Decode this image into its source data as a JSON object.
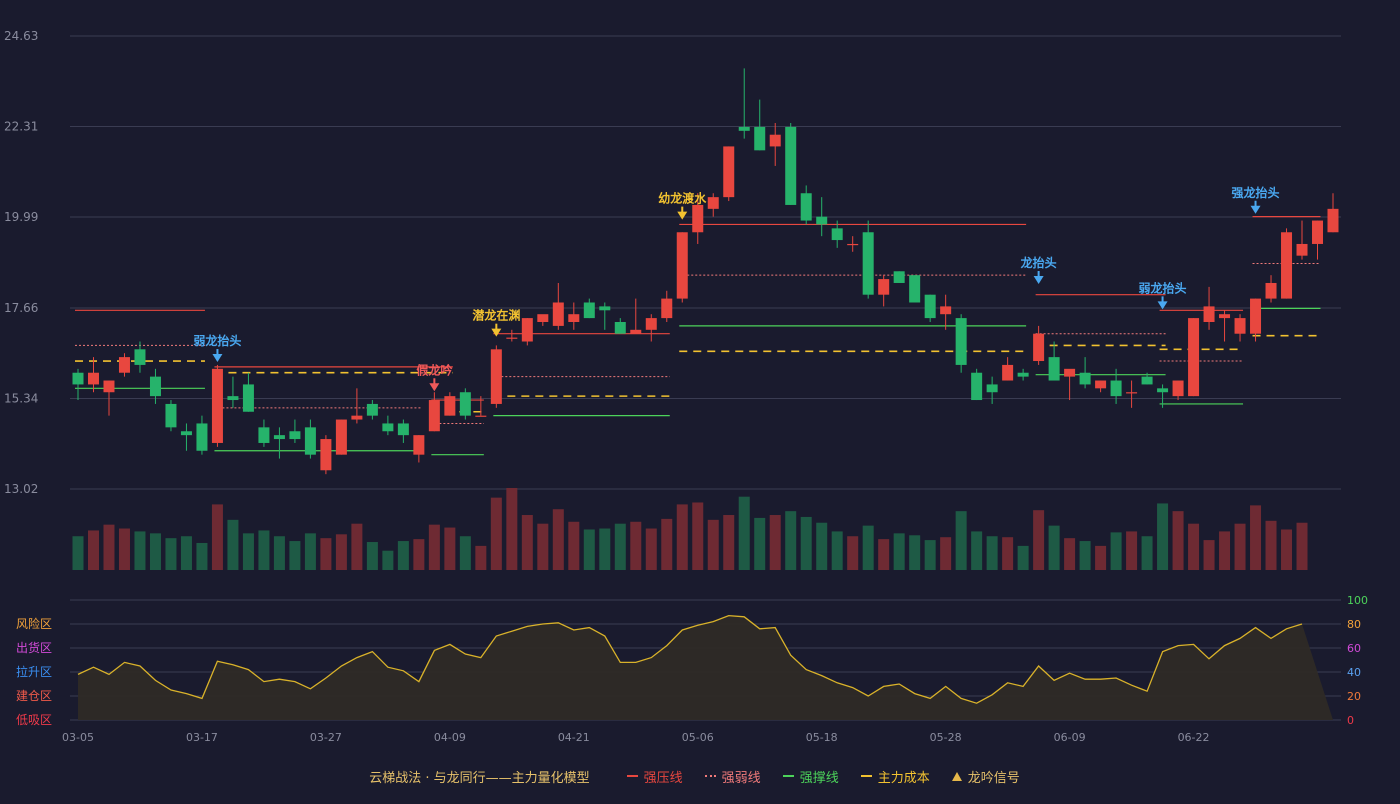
{
  "colors": {
    "background": "#1a1b2e",
    "grid": "#3a3c52",
    "axis_text": "#8a8c9e",
    "up": "#e8473f",
    "down": "#26b36b",
    "vol_up": "#6e2a33",
    "vol_down": "#1e5a45",
    "strong_pressure": "#e8473f",
    "strong_weak": "#f07a7a",
    "strong_support": "#4cd35a",
    "main_cost": "#f2c230",
    "signal_blue": "#4aa8f0",
    "signal_gold": "#f2c230",
    "signal_red": "#f05a5a",
    "osc_line": "#d9b22a",
    "osc_fill": "#2e2a26",
    "zone_risk": "#f2a23a",
    "zone_ship": "#d24ad8",
    "zone_rise": "#3a8ef0",
    "zone_build": "#f05a4a",
    "zone_low": "#f03a4a",
    "scale_100": "#4cd35a",
    "scale_80": "#f2a23a",
    "scale_60": "#d24ad8",
    "scale_40": "#5aa0f0",
    "scale_20": "#f07a3a",
    "scale_0": "#f03a4a"
  },
  "chart_data": {
    "type": "candlestick",
    "price_axis": {
      "ticks": [
        24.63,
        22.31,
        19.99,
        17.66,
        15.34,
        13.02
      ],
      "range": [
        13.02,
        24.63
      ]
    },
    "x_ticks": [
      {
        "i": 0,
        "label": "03-05"
      },
      {
        "i": 8,
        "label": "03-17"
      },
      {
        "i": 16,
        "label": "03-27"
      },
      {
        "i": 24,
        "label": "04-09"
      },
      {
        "i": 32,
        "label": "04-21"
      },
      {
        "i": 40,
        "label": "05-06"
      },
      {
        "i": 48,
        "label": "05-18"
      },
      {
        "i": 56,
        "label": "05-28"
      },
      {
        "i": 64,
        "label": "06-09"
      },
      {
        "i": 72,
        "label": "06-22"
      }
    ],
    "ohlc": [
      [
        16.0,
        16.1,
        15.3,
        15.7
      ],
      [
        15.7,
        16.4,
        15.5,
        16.0
      ],
      [
        15.5,
        15.8,
        14.9,
        15.8
      ],
      [
        16.0,
        16.5,
        15.9,
        16.4
      ],
      [
        16.6,
        16.8,
        16.0,
        16.2
      ],
      [
        15.9,
        16.1,
        15.2,
        15.4
      ],
      [
        15.2,
        15.3,
        14.5,
        14.6
      ],
      [
        14.5,
        14.7,
        14.0,
        14.4
      ],
      [
        14.7,
        14.9,
        13.9,
        14.0
      ],
      [
        14.2,
        16.2,
        14.1,
        16.1
      ],
      [
        15.4,
        15.9,
        15.1,
        15.3
      ],
      [
        15.7,
        16.0,
        15.0,
        15.0
      ],
      [
        14.6,
        14.8,
        14.1,
        14.2
      ],
      [
        14.4,
        14.6,
        13.8,
        14.3
      ],
      [
        14.5,
        14.8,
        14.2,
        14.3
      ],
      [
        14.6,
        14.8,
        13.8,
        13.9
      ],
      [
        13.5,
        14.4,
        13.4,
        14.3
      ],
      [
        13.9,
        14.8,
        13.9,
        14.8
      ],
      [
        14.8,
        15.6,
        14.7,
        14.9
      ],
      [
        15.2,
        15.3,
        14.8,
        14.9
      ],
      [
        14.7,
        14.9,
        14.4,
        14.5
      ],
      [
        14.7,
        14.8,
        14.2,
        14.4
      ],
      [
        13.9,
        14.4,
        13.7,
        14.4
      ],
      [
        14.5,
        15.5,
        14.5,
        15.3
      ],
      [
        14.9,
        15.5,
        14.9,
        15.4
      ],
      [
        15.5,
        15.6,
        14.8,
        14.9
      ],
      [
        14.9,
        15.4,
        14.9,
        14.9
      ],
      [
        15.2,
        16.7,
        15.1,
        16.6
      ],
      [
        16.9,
        17.1,
        16.8,
        16.9
      ],
      [
        16.8,
        17.4,
        16.7,
        17.4
      ],
      [
        17.3,
        17.4,
        17.2,
        17.5
      ],
      [
        17.2,
        18.3,
        17.1,
        17.8
      ],
      [
        17.3,
        17.8,
        17.1,
        17.5
      ],
      [
        17.8,
        17.9,
        17.4,
        17.4
      ],
      [
        17.7,
        17.8,
        17.1,
        17.6
      ],
      [
        17.3,
        17.4,
        17.0,
        17.0
      ],
      [
        17.0,
        17.9,
        17.0,
        17.1
      ],
      [
        17.1,
        17.5,
        16.8,
        17.4
      ],
      [
        17.4,
        18.1,
        17.3,
        17.9
      ],
      [
        17.9,
        19.6,
        17.8,
        19.6
      ],
      [
        19.6,
        20.6,
        19.3,
        20.3
      ],
      [
        20.2,
        20.6,
        20.0,
        20.5
      ],
      [
        20.5,
        21.8,
        20.4,
        21.8
      ],
      [
        22.3,
        23.8,
        22.0,
        22.2
      ],
      [
        22.3,
        23.0,
        21.7,
        21.7
      ],
      [
        21.8,
        22.4,
        21.3,
        22.1
      ],
      [
        22.3,
        22.4,
        20.3,
        20.3
      ],
      [
        20.6,
        20.8,
        19.8,
        19.9
      ],
      [
        20.0,
        20.5,
        19.5,
        19.8
      ],
      [
        19.7,
        19.9,
        19.2,
        19.4
      ],
      [
        19.3,
        19.5,
        19.1,
        19.3
      ],
      [
        19.6,
        19.9,
        17.9,
        18.0
      ],
      [
        18.0,
        18.5,
        17.7,
        18.4
      ],
      [
        18.6,
        18.6,
        18.3,
        18.3
      ],
      [
        18.5,
        18.5,
        17.8,
        17.8
      ],
      [
        18.0,
        18.0,
        17.3,
        17.4
      ],
      [
        17.5,
        18.0,
        17.1,
        17.7
      ],
      [
        17.4,
        17.5,
        16.0,
        16.2
      ],
      [
        16.0,
        16.1,
        15.3,
        15.3
      ],
      [
        15.7,
        15.9,
        15.2,
        15.5
      ],
      [
        15.8,
        16.4,
        15.8,
        16.2
      ],
      [
        16.0,
        16.1,
        15.8,
        15.9
      ],
      [
        16.3,
        17.2,
        16.2,
        17.0
      ],
      [
        16.4,
        16.8,
        15.9,
        15.8
      ],
      [
        15.9,
        16.0,
        15.3,
        16.1
      ],
      [
        16.0,
        16.4,
        15.6,
        15.7
      ],
      [
        15.6,
        15.8,
        15.5,
        15.8
      ],
      [
        15.8,
        16.1,
        15.2,
        15.4
      ],
      [
        15.5,
        15.8,
        15.1,
        15.5
      ],
      [
        15.9,
        16.0,
        15.7,
        15.7
      ],
      [
        15.6,
        15.7,
        15.1,
        15.5
      ],
      [
        15.4,
        15.8,
        15.3,
        15.8
      ],
      [
        15.4,
        17.4,
        15.4,
        17.4
      ],
      [
        17.3,
        18.2,
        17.1,
        17.7
      ],
      [
        17.4,
        17.6,
        16.8,
        17.5
      ],
      [
        17.0,
        17.5,
        16.8,
        17.4
      ],
      [
        17.0,
        17.9,
        16.8,
        17.9
      ],
      [
        17.9,
        18.5,
        17.8,
        18.3
      ],
      [
        17.9,
        19.7,
        17.9,
        19.6
      ],
      [
        19.0,
        19.9,
        18.9,
        19.3
      ],
      [
        19.3,
        19.9,
        18.9,
        19.9
      ],
      [
        19.6,
        20.6,
        19.6,
        20.2
      ]
    ],
    "volume": [
      35,
      41,
      47,
      43,
      40,
      38,
      33,
      35,
      28,
      68,
      52,
      38,
      41,
      35,
      30,
      38,
      33,
      37,
      48,
      29,
      20,
      30,
      32,
      47,
      44,
      35,
      25,
      75,
      85,
      57,
      48,
      63,
      50,
      42,
      43,
      48,
      50,
      43,
      53,
      68,
      70,
      52,
      57,
      76,
      54,
      57,
      61,
      55,
      49,
      40,
      35,
      46,
      32,
      38,
      36,
      31,
      34,
      61,
      40,
      35,
      34,
      25,
      62,
      46,
      33,
      30,
      25,
      39,
      40,
      35,
      69,
      61,
      48,
      31,
      40,
      48,
      67,
      51,
      42,
      49
    ],
    "oscillator": [
      38,
      44,
      38,
      48,
      45,
      33,
      25,
      22,
      18,
      49,
      46,
      42,
      32,
      34,
      32,
      26,
      35,
      45,
      52,
      57,
      44,
      41,
      32,
      58,
      63,
      55,
      52,
      70,
      74,
      78,
      80,
      81,
      75,
      77,
      70,
      48,
      48,
      52,
      62,
      75,
      79,
      82,
      87,
      86,
      76,
      77,
      54,
      42,
      37,
      31,
      27,
      20,
      28,
      30,
      22,
      18,
      28,
      18,
      14,
      21,
      31,
      28,
      45,
      33,
      39,
      34,
      34,
      35,
      29,
      24,
      57,
      62,
      63,
      51,
      62,
      68,
      77,
      68,
      76,
      80
    ],
    "oscillator_scale": [
      {
        "value": 100,
        "label": "100",
        "color_key": "scale_100"
      },
      {
        "value": 80,
        "label": "80",
        "color_key": "scale_80"
      },
      {
        "value": 60,
        "label": "60",
        "color_key": "scale_60"
      },
      {
        "value": 40,
        "label": "40",
        "color_key": "scale_40"
      },
      {
        "value": 20,
        "label": "20",
        "color_key": "scale_20"
      },
      {
        "value": 0,
        "label": "0",
        "color_key": "scale_0"
      }
    ],
    "zones": [
      {
        "value": 80,
        "label": "风险区",
        "color_key": "zone_risk"
      },
      {
        "value": 60,
        "label": "出货区",
        "color_key": "zone_ship"
      },
      {
        "value": 40,
        "label": "拉升区",
        "color_key": "zone_rise"
      },
      {
        "value": 20,
        "label": "建仓区",
        "color_key": "zone_build"
      },
      {
        "value": 0,
        "label": "低吸区",
        "color_key": "zone_low"
      }
    ],
    "levels": [
      {
        "kind": "strong_pressure",
        "from": 0,
        "to": 8,
        "price": 17.6
      },
      {
        "kind": "strong_weak",
        "from": 0,
        "to": 8,
        "price": 16.7
      },
      {
        "kind": "main_cost",
        "from": 0,
        "to": 8,
        "price": 16.3
      },
      {
        "kind": "strong_support",
        "from": 0,
        "to": 8,
        "price": 15.6
      },
      {
        "kind": "strong_pressure",
        "from": 9,
        "to": 24,
        "price": 16.15
      },
      {
        "kind": "main_cost",
        "from": 9,
        "to": 24,
        "price": 16.0
      },
      {
        "kind": "strong_weak",
        "from": 9,
        "to": 22,
        "price": 15.1
      },
      {
        "kind": "strong_support",
        "from": 9,
        "to": 22,
        "price": 14.0
      },
      {
        "kind": "strong_pressure",
        "from": 23,
        "to": 26,
        "price": 15.3
      },
      {
        "kind": "strong_weak",
        "from": 23,
        "to": 26,
        "price": 14.7
      },
      {
        "kind": "main_cost",
        "from": 23,
        "to": 26,
        "price": 15.0
      },
      {
        "kind": "strong_support",
        "from": 23,
        "to": 26,
        "price": 13.9
      },
      {
        "kind": "strong_pressure",
        "from": 27,
        "to": 38,
        "price": 17.0
      },
      {
        "kind": "strong_weak",
        "from": 27,
        "to": 38,
        "price": 15.9
      },
      {
        "kind": "main_cost",
        "from": 27,
        "to": 38,
        "price": 15.4
      },
      {
        "kind": "strong_support",
        "from": 27,
        "to": 38,
        "price": 14.9
      },
      {
        "kind": "strong_pressure",
        "from": 39,
        "to": 61,
        "price": 19.8
      },
      {
        "kind": "strong_weak",
        "from": 39,
        "to": 61,
        "price": 18.5
      },
      {
        "kind": "strong_support",
        "from": 39,
        "to": 61,
        "price": 17.2
      },
      {
        "kind": "main_cost",
        "from": 39,
        "to": 61,
        "price": 16.55
      },
      {
        "kind": "strong_pressure",
        "from": 62,
        "to": 70,
        "price": 18.0
      },
      {
        "kind": "strong_weak",
        "from": 62,
        "to": 70,
        "price": 17.0
      },
      {
        "kind": "main_cost",
        "from": 62,
        "to": 70,
        "price": 16.7
      },
      {
        "kind": "strong_support",
        "from": 62,
        "to": 70,
        "price": 15.95
      },
      {
        "kind": "strong_pressure",
        "from": 70,
        "to": 75,
        "price": 17.6
      },
      {
        "kind": "main_cost",
        "from": 70,
        "to": 75,
        "price": 16.6
      },
      {
        "kind": "strong_weak",
        "from": 70,
        "to": 75,
        "price": 16.3
      },
      {
        "kind": "strong_support",
        "from": 70,
        "to": 75,
        "price": 15.2
      },
      {
        "kind": "strong_pressure",
        "from": 76,
        "to": 80,
        "price": 20.0
      },
      {
        "kind": "strong_weak",
        "from": 76,
        "to": 80,
        "price": 18.8
      },
      {
        "kind": "strong_support",
        "from": 76,
        "to": 80,
        "price": 17.65
      },
      {
        "kind": "main_cost",
        "from": 76,
        "to": 80,
        "price": 16.95
      }
    ],
    "signals": [
      {
        "i": 9,
        "label": "弱龙抬头",
        "color_key": "signal_blue",
        "price": 16.3
      },
      {
        "i": 23,
        "label": "假龙吟",
        "color_key": "signal_red",
        "price": 15.55
      },
      {
        "i": 27,
        "label": "潜龙在渊",
        "color_key": "signal_gold",
        "price": 16.95
      },
      {
        "i": 39,
        "label": "幼龙渡水",
        "color_key": "signal_gold",
        "price": 19.95
      },
      {
        "i": 62,
        "label": "龙抬头",
        "color_key": "signal_blue",
        "price": 18.3
      },
      {
        "i": 70,
        "label": "弱龙抬头",
        "color_key": "signal_blue",
        "price": 17.65
      },
      {
        "i": 76,
        "label": "强龙抬头",
        "color_key": "signal_blue",
        "price": 20.1
      }
    ]
  },
  "legend": {
    "title": "云梯战法 · 与龙同行——主力量化模型",
    "items": [
      {
        "label": "强压线",
        "style": "solid",
        "color_key": "strong_pressure"
      },
      {
        "label": "强弱线",
        "style": "dotted",
        "color_key": "strong_weak"
      },
      {
        "label": "强撑线",
        "style": "solid",
        "color_key": "strong_support"
      },
      {
        "label": "主力成本",
        "style": "dashed",
        "color_key": "main_cost"
      },
      {
        "label": "龙吟信号",
        "style": "triangle",
        "color_key": "signal_gold"
      }
    ]
  }
}
